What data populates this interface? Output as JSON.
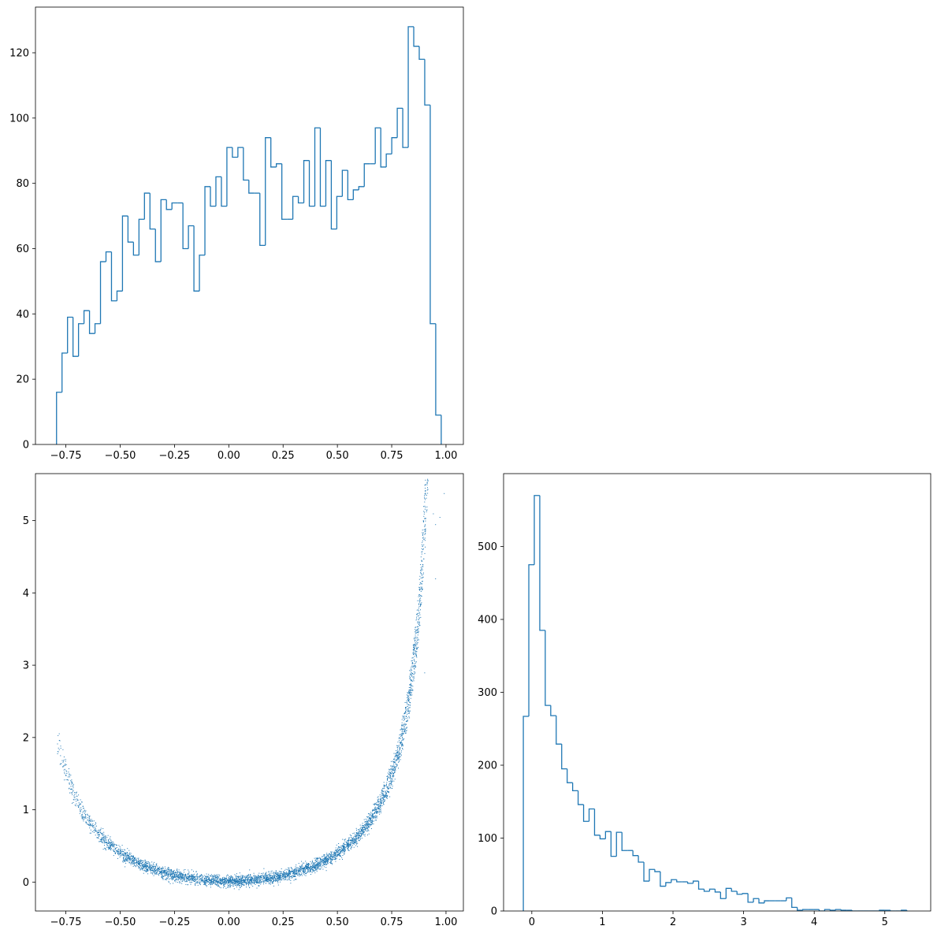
{
  "chart_data": [
    {
      "panel": "top-left",
      "type": "histogram",
      "histtype": "step",
      "color": "#1f77b4",
      "title": "",
      "xlabel": "",
      "ylabel": "",
      "xlim": [
        -0.89,
        1.08
      ],
      "ylim": [
        0,
        134
      ],
      "xticks": [
        -0.75,
        -0.5,
        -0.25,
        0.0,
        0.25,
        0.5,
        0.75,
        1.0
      ],
      "xtick_labels": [
        "−0.75",
        "−0.50",
        "−0.25",
        "0.00",
        "0.25",
        "0.50",
        "0.75",
        "1.00"
      ],
      "yticks": [
        0,
        20,
        40,
        60,
        80,
        100,
        120
      ],
      "ytick_labels": [
        "0",
        "20",
        "40",
        "60",
        "80",
        "100",
        "120"
      ],
      "bin_start": -0.793,
      "bin_width": 0.0253,
      "counts": [
        16,
        28,
        39,
        27,
        37,
        41,
        34,
        37,
        56,
        59,
        44,
        47,
        70,
        62,
        58,
        69,
        77,
        66,
        56,
        75,
        72,
        74,
        74,
        60,
        67,
        47,
        58,
        79,
        73,
        82,
        73,
        91,
        88,
        91,
        81,
        77,
        77,
        61,
        94,
        85,
        86,
        69,
        69,
        76,
        74,
        87,
        73,
        97,
        73,
        87,
        66,
        76,
        84,
        75,
        78,
        79,
        86,
        86,
        97,
        85,
        89,
        94,
        103,
        91,
        128,
        122,
        118,
        104,
        37,
        9
      ]
    },
    {
      "panel": "bottom-left",
      "type": "scatter",
      "color": "#1f77b4",
      "title": "",
      "xlabel": "",
      "ylabel": "",
      "xlim": [
        -0.89,
        1.08
      ],
      "ylim": [
        -0.4,
        5.65
      ],
      "xticks": [
        -0.75,
        -0.5,
        -0.25,
        0.0,
        0.25,
        0.5,
        0.75,
        1.0
      ],
      "xtick_labels": [
        "−0.75",
        "−0.50",
        "−0.25",
        "0.00",
        "0.25",
        "0.50",
        "0.75",
        "1.00"
      ],
      "yticks": [
        0,
        1,
        2,
        3,
        4,
        5
      ],
      "ytick_labels": [
        "0",
        "1",
        "2",
        "3",
        "4",
        "5"
      ],
      "description_points": "dense band following y ≈ x²/(1−x²)·(1.1–1.3) from x=-0.79 to x=0.99; sparse outliers near x=0.95–0.99, y=4.2–5.4",
      "points": [
        [
          -0.79,
          1.78
        ],
        [
          0.0,
          0.0
        ],
        [
          0.5,
          0.45
        ],
        [
          0.75,
          1.3
        ],
        [
          0.9,
          2.9
        ],
        [
          0.95,
          4.2
        ],
        [
          0.94,
          5.1
        ],
        [
          0.97,
          5.05
        ],
        [
          0.99,
          5.38
        ],
        [
          0.95,
          4.95
        ]
      ]
    },
    {
      "panel": "bottom-right",
      "type": "histogram",
      "histtype": "step",
      "color": "#1f77b4",
      "title": "",
      "xlabel": "",
      "ylabel": "",
      "xlim": [
        -0.4,
        5.65
      ],
      "ylim": [
        0,
        600
      ],
      "xticks": [
        0,
        1,
        2,
        3,
        4,
        5
      ],
      "xtick_labels": [
        "0",
        "1",
        "2",
        "3",
        "4",
        "5"
      ],
      "yticks": [
        0,
        100,
        200,
        300,
        400,
        500
      ],
      "ytick_labels": [
        "0",
        "100",
        "200",
        "300",
        "400",
        "500"
      ],
      "bin_start": -0.12,
      "bin_width": 0.0776,
      "counts": [
        267,
        475,
        570,
        385,
        282,
        268,
        229,
        195,
        176,
        165,
        146,
        123,
        140,
        104,
        99,
        109,
        75,
        108,
        83,
        83,
        76,
        67,
        41,
        57,
        54,
        34,
        39,
        43,
        40,
        40,
        38,
        41,
        30,
        27,
        30,
        26,
        17,
        31,
        27,
        23,
        24,
        12,
        17,
        11,
        14,
        14,
        14,
        14,
        18,
        5,
        1,
        2,
        2,
        2,
        0,
        2,
        1,
        2,
        1,
        1,
        0,
        0,
        0,
        0,
        0,
        1,
        1,
        0,
        0,
        1
      ]
    }
  ]
}
